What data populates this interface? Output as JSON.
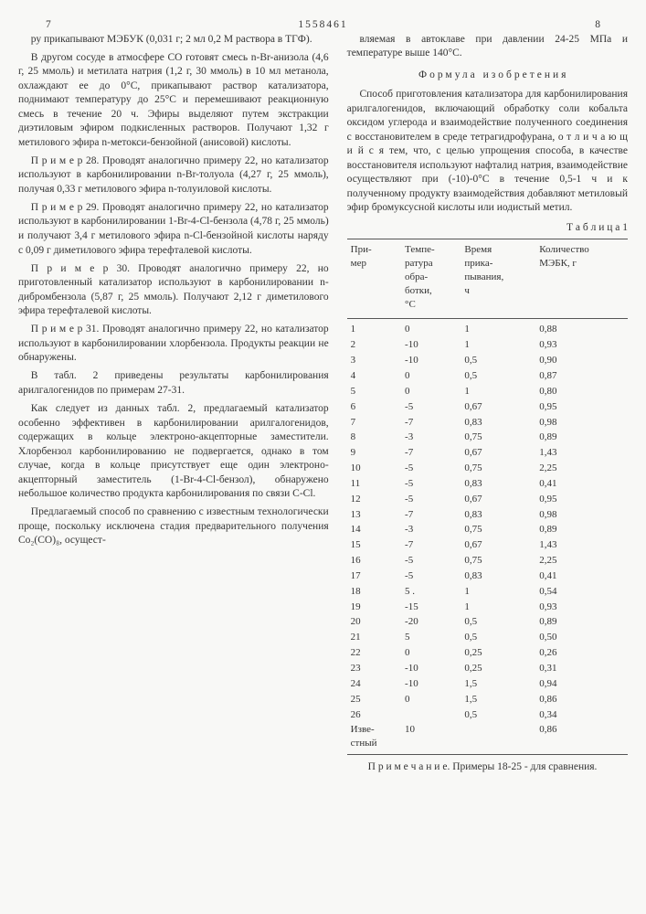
{
  "header": {
    "page_left": "7",
    "doc_number": "1558461",
    "page_right": "8"
  },
  "left_column": {
    "paragraphs": [
      "ру прикапывают МЭБУК (0,031 г; 2 мл 0,2 М раствора в ТГФ).",
      "В другом сосуде в атмосфере СО готовят смесь n-Br-анизола (4,6 г, 25 ммоль) и метилата натрия (1,2 г, 30 ммоль) в 10 мл метанола, охлаждают ее до 0°С, прикапывают раствор катализатора, поднимают температуру до 25°С и перемешивают реакционную смесь в течение 20 ч. Эфиры выделяют путем экстракции диэтиловым эфиром подкисленных растворов. Получают 1,32 г метилового эфира n-метокси-бензойной (анисовой) кислоты.",
      "П р и м е р  28. Проводят аналогично примеру 22, но катализатор используют в карбонилировании n-Br-толуола (4,27 г, 25 ммоль), получая 0,33 г метилового эфира n-толуиловой кислоты.",
      "П р и м е р  29. Проводят аналогично примеру 22, но катализатор используют в карбонилировании 1-Br-4-Cl-бензола (4,78 г, 25 ммоль) и получают 3,4 г метилового эфира n-Cl-бензойной кислоты наряду с 0,09 г диметилового эфира терефталевой кислоты.",
      "П р и м е р  30. Проводят аналогично примеру 22, но приготовленный катализатор используют в карбонилировании n-дибромбензола (5,87 г, 25 ммоль). Получают 2,12 г диметилового эфира терефталевой кислоты.",
      "П р и м е р  31. Проводят аналогично примеру 22, но катализатор используют в карбонилировании хлорбензола. Продукты реакции не обнаружены.",
      "В табл. 2 приведены результаты карбонилирования арилгалогенидов по примерам 27-31.",
      "Как следует из данных табл. 2, предлагаемый катализатор особенно эффективен в карбонилировании арилгалогенидов, содержащих в кольце электроно-акцепторные заместители. Хлорбензол карбонилированию не подвергается, однако в том случае, когда в кольце присутствует еще один электроно-акцепторный заместитель (1-Br-4-Cl-бензол), обнаружено небольшое количество продукта карбонилирования по связи C-Cl.",
      "Предлагаемый способ по сравнению с известным технологически проще, поскольку исключена стадия предварительного получения Co₂(CO)₈, осущест-"
    ]
  },
  "right_column": {
    "top_paragraphs": [
      "вляемая в автоклаве при давлении 24-25 МПа и температуре выше 140°С."
    ],
    "formula_title": "Формула изобретения",
    "formula_text": "Способ приготовления катализатора для карбонилирования арилгалогенидов, включающий обработку соли кобальта оксидом углерода и взаимодействие полученного соединения с восстановителем в среде тетрагидрофурана, о т л и ч а ю щ и й с я  тем, что, с целью упрощения способа, в качестве восстановителя используют нафталид натрия, взаимодействие осуществляют при (-10)-0°С в течение 0,5-1 ч и к полученному продукту взаимодействия добавляют метиловый эфир бромуксусной кислоты или иодистый метил.",
    "table_title": "Т а б л и ц а 1",
    "table": {
      "columns": [
        "При-\nмер",
        "Темпе-\nратура\nобра-\nботки,\n°С",
        "Время\nприка-\nпывания,\nч",
        "Количество\nМЭБК, г"
      ],
      "rows": [
        [
          "1",
          "0",
          "1",
          "0,88"
        ],
        [
          "2",
          "-10",
          "1",
          "0,93"
        ],
        [
          "3",
          "-10",
          "0,5",
          "0,90"
        ],
        [
          "4",
          "0",
          "0,5",
          "0,87"
        ],
        [
          "5",
          "0",
          "1",
          "0,80"
        ],
        [
          "6",
          "-5",
          "0,67",
          "0,95"
        ],
        [
          "7",
          "-7",
          "0,83",
          "0,98"
        ],
        [
          "8",
          "-3",
          "0,75",
          "0,89"
        ],
        [
          "9",
          "-7",
          "0,67",
          "1,43"
        ],
        [
          "10",
          "-5",
          "0,75",
          "2,25"
        ],
        [
          "11",
          "-5",
          "0,83",
          "0,41"
        ],
        [
          "12",
          "-5",
          "0,67",
          "0,95"
        ],
        [
          "13",
          "-7",
          "0,83",
          "0,98"
        ],
        [
          "14",
          "-3",
          "0,75",
          "0,89"
        ],
        [
          "15",
          "-7",
          "0,67",
          "1,43"
        ],
        [
          "16",
          "-5",
          "0,75",
          "2,25"
        ],
        [
          "17",
          "-5",
          "0,83",
          "0,41"
        ],
        [
          "18",
          "5 .",
          "1",
          "0,54"
        ],
        [
          "19",
          "-15",
          "1",
          "0,93"
        ],
        [
          "20",
          "-20",
          "0,5",
          "0,89"
        ],
        [
          "21",
          "5",
          "0,5",
          "0,50"
        ],
        [
          "22",
          "0",
          "0,25",
          "0,26"
        ],
        [
          "23",
          "-10",
          "0,25",
          "0,31"
        ],
        [
          "24",
          "-10",
          "1,5",
          "0,94"
        ],
        [
          "25",
          "0",
          "1,5",
          "0,86"
        ],
        [
          "26",
          "",
          "0,5",
          "0,34"
        ],
        [
          "Изве-\nстный",
          "10",
          "",
          "0,86"
        ]
      ]
    },
    "note": "П р и м е ч а н и е. Примеры 18-25 - для сравнения."
  }
}
